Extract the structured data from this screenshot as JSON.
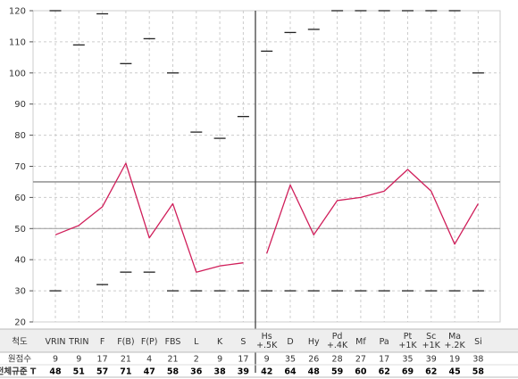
{
  "chart_data": {
    "type": "line",
    "ylim": [
      20,
      120
    ],
    "yticks": [
      20,
      30,
      40,
      50,
      60,
      70,
      80,
      90,
      100,
      110,
      120
    ],
    "reference_lines": [
      65,
      50
    ],
    "grid": true,
    "scales": [
      {
        "label": "VRIN",
        "sub": ""
      },
      {
        "label": "TRIN",
        "sub": ""
      },
      {
        "label": "F",
        "sub": ""
      },
      {
        "label": "F(B)",
        "sub": ""
      },
      {
        "label": "F(P)",
        "sub": ""
      },
      {
        "label": "FBS",
        "sub": ""
      },
      {
        "label": "L",
        "sub": ""
      },
      {
        "label": "K",
        "sub": ""
      },
      {
        "label": "S",
        "sub": ""
      },
      {
        "label": "Hs",
        "sub": "+.5K"
      },
      {
        "label": "D",
        "sub": ""
      },
      {
        "label": "Hy",
        "sub": ""
      },
      {
        "label": "Pd",
        "sub": "+.4K"
      },
      {
        "label": "Mf",
        "sub": ""
      },
      {
        "label": "Pa",
        "sub": ""
      },
      {
        "label": "Pt",
        "sub": "+1K"
      },
      {
        "label": "Sc",
        "sub": "+1K"
      },
      {
        "label": "Ma",
        "sub": "+.2K"
      },
      {
        "label": "Si",
        "sub": ""
      }
    ],
    "series": [
      {
        "name": "",
        "segments": [
          [
            0,
            8
          ],
          [
            9,
            18
          ]
        ],
        "values": [
          48,
          51,
          57,
          71,
          47,
          58,
          36,
          38,
          39,
          42,
          64,
          48,
          59,
          60,
          62,
          69,
          62,
          45,
          58
        ]
      }
    ],
    "upper_marks": [
      120,
      109,
      119,
      103,
      111,
      100,
      81,
      79,
      86,
      107,
      113,
      114,
      120,
      120,
      120,
      120,
      120,
      120,
      100
    ],
    "lower_marks": [
      30,
      null,
      32,
      36,
      36,
      30,
      30,
      30,
      30,
      30,
      30,
      30,
      30,
      30,
      30,
      30,
      30,
      30,
      30
    ],
    "table": {
      "header_label": "척도",
      "raw_label": "원점수",
      "t_label": "전체규준 T",
      "raw_scores": [
        9,
        9,
        17,
        21,
        4,
        21,
        2,
        9,
        17,
        9,
        35,
        26,
        28,
        27,
        17,
        35,
        39,
        19,
        38
      ],
      "t_scores": [
        48,
        51,
        57,
        71,
        47,
        58,
        36,
        38,
        39,
        42,
        64,
        48,
        59,
        60,
        62,
        69,
        62,
        45,
        58
      ]
    },
    "colors": {
      "line": "#d01e5a",
      "marks": "#222222",
      "grid": "#cccccc",
      "reference": "#999999",
      "divider": "#333333",
      "header_bg": "#eeeeee"
    }
  }
}
